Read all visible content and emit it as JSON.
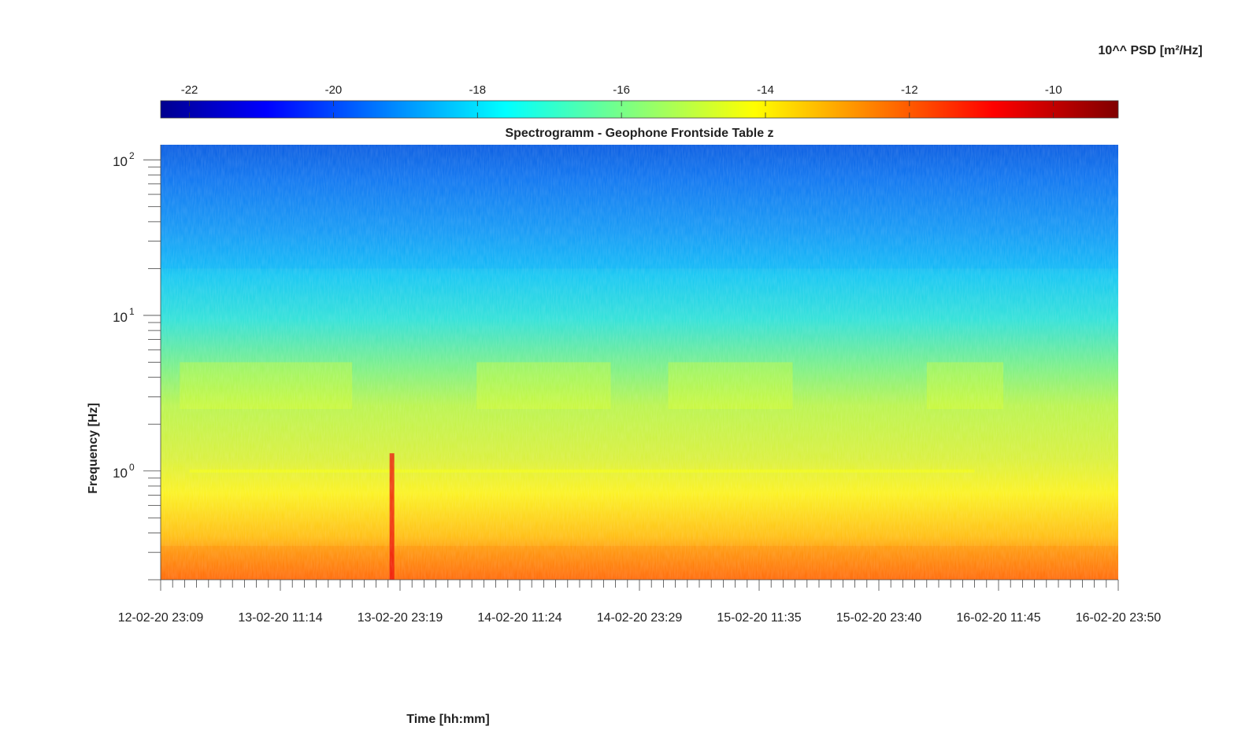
{
  "chart_data": {
    "type": "heatmap",
    "title": "Spectrogramm - Geophone Frontside Table z",
    "xlabel": "Time [hh:mm]",
    "ylabel": "Frequency [Hz]",
    "yscale": "log",
    "ylim": [
      0.2,
      125
    ],
    "x_tick_labels": [
      "12-02-20 23:09",
      "13-02-20 11:14",
      "13-02-20 23:19",
      "14-02-20 11:24",
      "14-02-20 23:29",
      "15-02-20 11:35",
      "15-02-20 23:40",
      "16-02-20 11:45",
      "16-02-20 23:50"
    ],
    "y_ticks": [
      {
        "base": "10",
        "exp": "0",
        "value": 1
      },
      {
        "base": "10",
        "exp": "1",
        "value": 10
      },
      {
        "base": "10",
        "exp": "2",
        "value": 100
      }
    ],
    "colorbar": {
      "label": "10^^ PSD [m²/Hz]",
      "colormap": "jet",
      "range": [
        -22.4,
        -9.1
      ],
      "ticks": [
        -22,
        -20,
        -18,
        -16,
        -14,
        -12,
        -10
      ],
      "tick_labels": [
        "-22",
        "-20",
        "-18",
        "-16",
        "-14",
        "-12",
        "-10"
      ]
    },
    "features": {
      "low_freq_band_level": -12.5,
      "mid_band_1_to_5_hz_level": -14.5,
      "high_band_20_to_125_hz_level": -18.5,
      "transient_vertical_event_at": "13-02-20 22:30",
      "line_at_1_hz_level": -14.2
    }
  }
}
